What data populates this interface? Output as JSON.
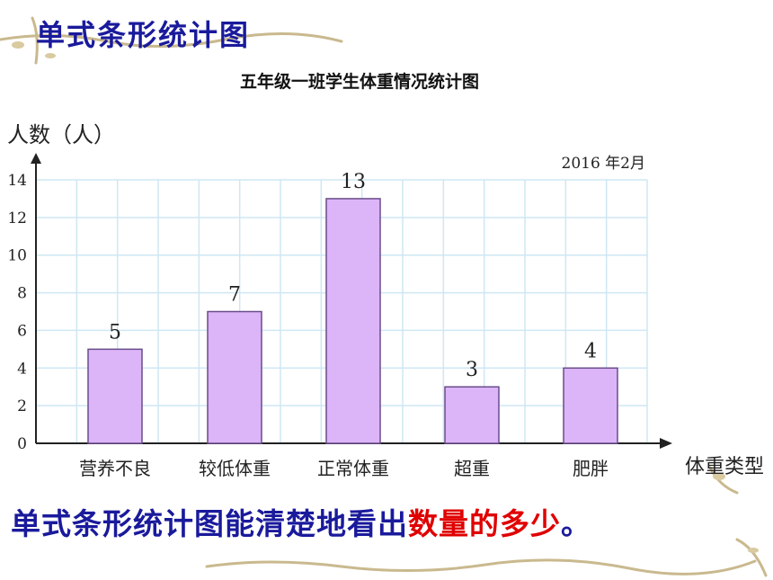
{
  "slide_title": "单式条形统计图",
  "summary": {
    "text": "单式条形统计图能清楚地看出",
    "highlight": "数量的多少",
    "end": "。"
  },
  "chart_data": {
    "type": "bar",
    "title": "五年级一班学生体重情况统计图",
    "date_note": "2016 年2月",
    "ylabel": "人数（人）",
    "xlabel": "体重类型",
    "categories": [
      "营养不良",
      "较低体重",
      "正常体重",
      "超重",
      "肥胖"
    ],
    "values": [
      5,
      7,
      13,
      3,
      4
    ],
    "yticks": [
      0,
      2,
      4,
      6,
      8,
      10,
      12,
      14
    ],
    "ylim": [
      0,
      14
    ],
    "grid": true,
    "bar_color": "#dcb4f8",
    "bar_border": "#6a4d8a",
    "grid_color": "#cfe7f4"
  }
}
